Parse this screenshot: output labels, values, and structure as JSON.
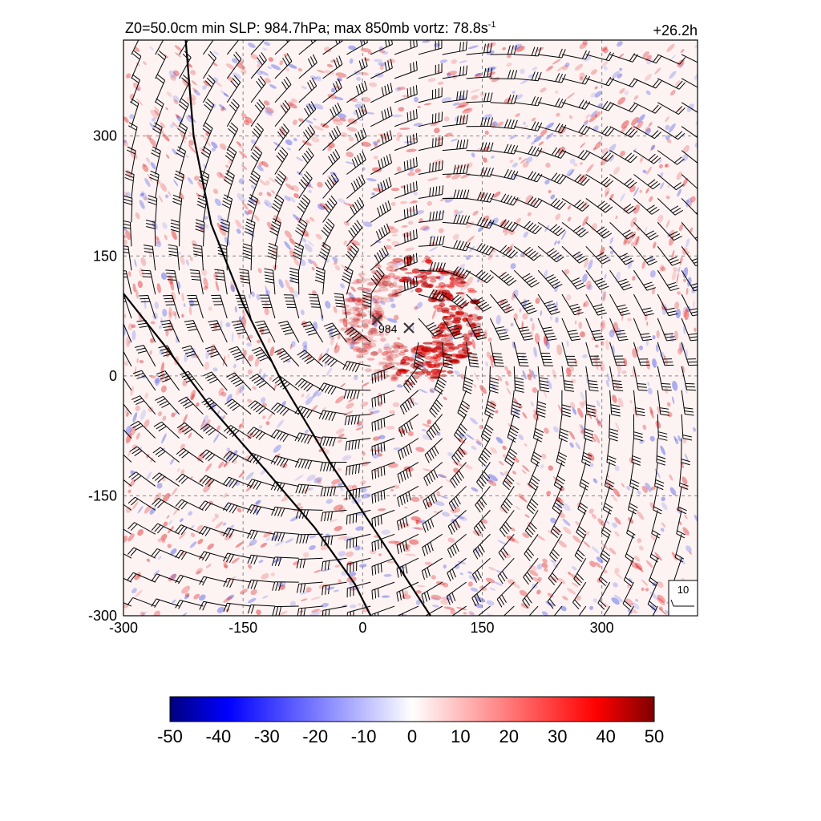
{
  "header": {
    "title": "Z0=50.0cm  min SLP: 984.7hPa; max 850mb vortz:  78.8s",
    "title_sup": "-1",
    "time_label": "+26.2h"
  },
  "chart_data": {
    "type": "heatmap",
    "x_ticks": [
      -300,
      -150,
      0,
      150,
      300
    ],
    "y_ticks": [
      -300,
      -150,
      0,
      150,
      300
    ],
    "xlim": [
      -300,
      420
    ],
    "ylim": [
      -300,
      420
    ],
    "grid": true,
    "field_range": [
      -50,
      50
    ],
    "colorbar": {
      "ticks": [
        -50,
        -40,
        -30,
        -20,
        -10,
        0,
        10,
        20,
        30,
        40,
        50
      ],
      "colors": [
        "#00007f",
        "#0000ff",
        "#ffffff",
        "#ff0000",
        "#7f0000"
      ]
    },
    "markers": [
      {
        "label": "",
        "x": 18,
        "y": 70
      },
      {
        "label": "984",
        "x": 58,
        "y": 60
      }
    ],
    "wind_key": {
      "label": "10"
    },
    "fronts": [
      {
        "points": [
          [
            -222,
            420
          ],
          [
            -212,
            300
          ],
          [
            -190,
            190
          ],
          [
            -150,
            90
          ],
          [
            -100,
            -10
          ],
          [
            -40,
            -110
          ],
          [
            20,
            -200
          ],
          [
            85,
            -300
          ]
        ]
      },
      {
        "points": [
          [
            -300,
            103
          ],
          [
            -250,
            40
          ],
          [
            -190,
            -40
          ],
          [
            -120,
            -120
          ],
          [
            -60,
            -190
          ],
          [
            -10,
            -260
          ],
          [
            10,
            -300
          ]
        ]
      }
    ],
    "wind_field": {
      "center": [
        40,
        60
      ],
      "unit": "kt",
      "barb_spacing": 30
    }
  }
}
